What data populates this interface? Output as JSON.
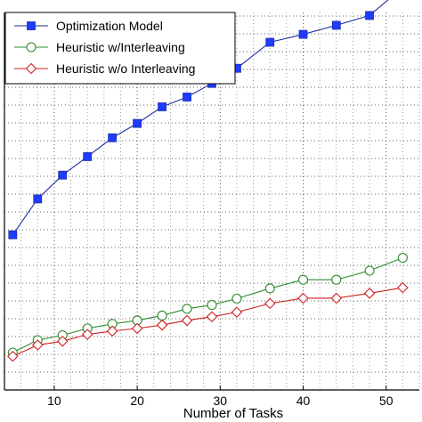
{
  "chart_data": {
    "type": "line",
    "title": "",
    "xlabel": "Number of Tasks",
    "ylabel": "",
    "xlim": [
      4,
      54
    ],
    "ylim": [
      0,
      1
    ],
    "grid": true,
    "x_ticks": [
      10,
      20,
      30,
      40,
      50
    ],
    "legend_position": "top-left",
    "series": [
      {
        "name": "Optimization Model",
        "color": "#1f2ea0",
        "marker": "square",
        "marker_color": "#1e3cff",
        "x": [
          5,
          8,
          11,
          14,
          17,
          20,
          23,
          26,
          29,
          32,
          36,
          40,
          44,
          48,
          52
        ],
        "y": [
          0.345,
          0.44,
          0.503,
          0.552,
          0.602,
          0.64,
          0.684,
          0.71,
          0.746,
          0.786,
          0.855,
          0.876,
          0.9,
          0.926,
          1.0
        ]
      },
      {
        "name": "Heuristic w/Interleaving",
        "color": "#2e8b2e",
        "marker": "circle",
        "x": [
          5,
          8,
          11,
          14,
          17,
          20,
          23,
          26,
          29,
          32,
          36,
          40,
          44,
          48,
          52
        ],
        "y": [
          0.033,
          0.066,
          0.079,
          0.097,
          0.109,
          0.118,
          0.131,
          0.149,
          0.159,
          0.176,
          0.203,
          0.226,
          0.226,
          0.25,
          0.284
        ]
      },
      {
        "name": "Heuristic w/o Interleaving",
        "color": "#d02020",
        "marker": "diamond",
        "x": [
          5,
          8,
          11,
          14,
          17,
          20,
          23,
          26,
          29,
          32,
          36,
          40,
          44,
          48,
          52
        ],
        "y": [
          0.023,
          0.053,
          0.063,
          0.081,
          0.09,
          0.097,
          0.106,
          0.118,
          0.128,
          0.14,
          0.163,
          0.177,
          0.177,
          0.19,
          0.205
        ]
      }
    ]
  }
}
